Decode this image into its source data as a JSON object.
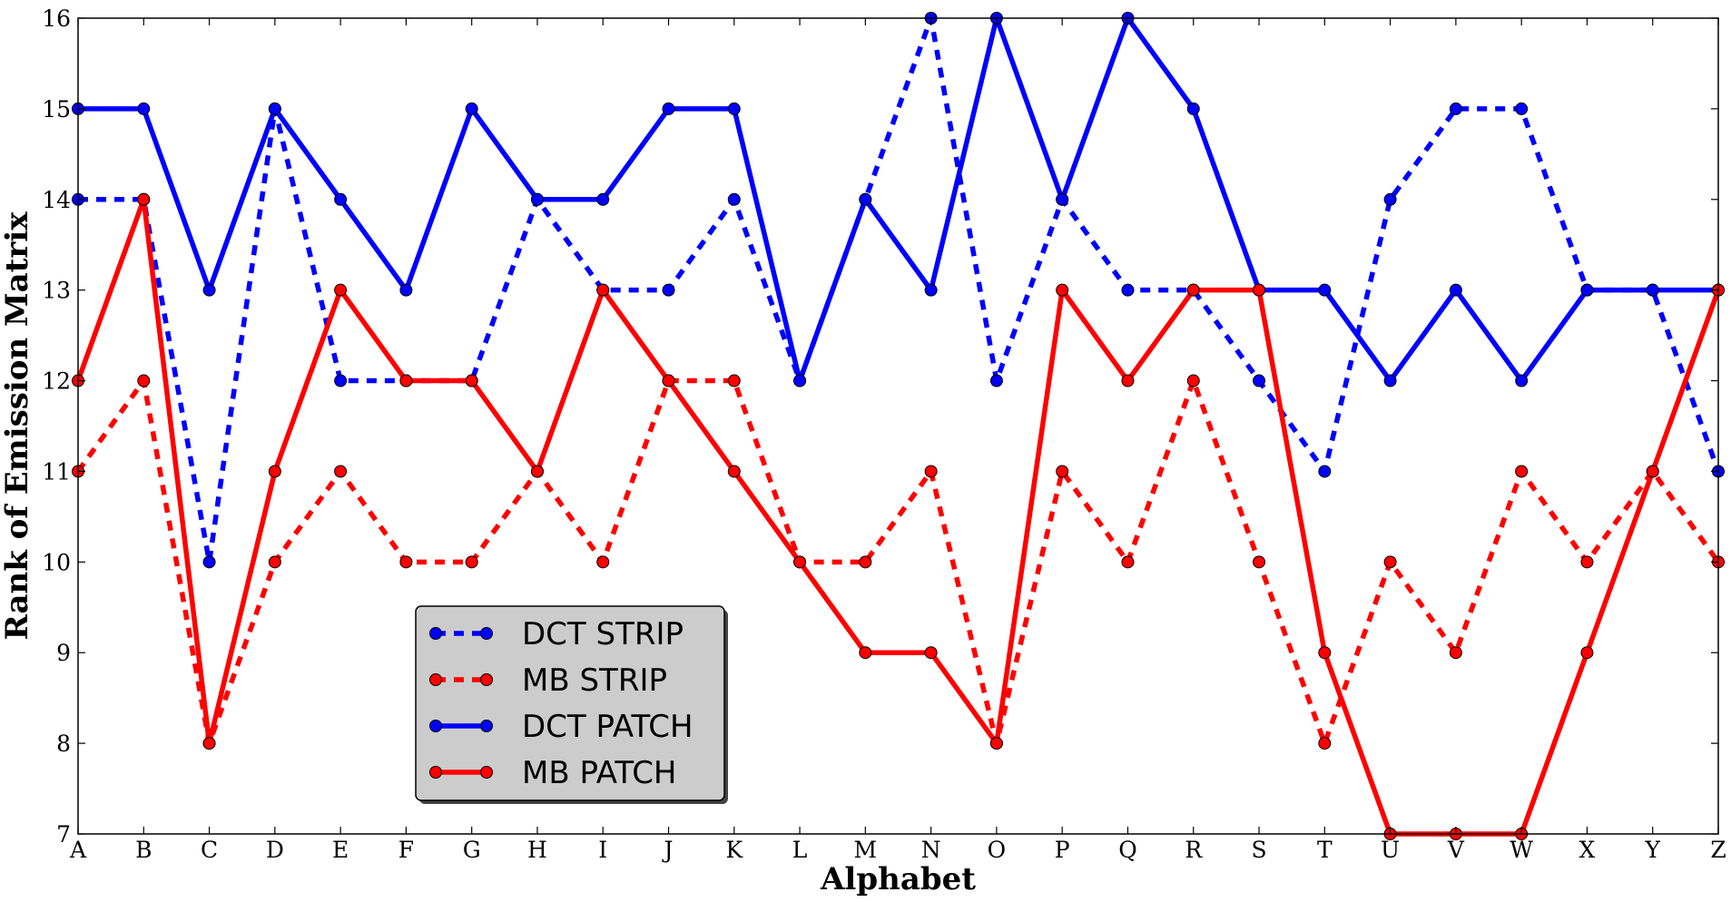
{
  "chart_data": {
    "type": "line",
    "title": "",
    "xlabel": "Alphabet",
    "ylabel": "Rank of Emission Matrix",
    "categories": [
      "A",
      "B",
      "C",
      "D",
      "E",
      "F",
      "G",
      "H",
      "I",
      "J",
      "K",
      "L",
      "M",
      "N",
      "O",
      "P",
      "Q",
      "R",
      "S",
      "T",
      "U",
      "V",
      "W",
      "X",
      "Y",
      "Z"
    ],
    "ylim": [
      7,
      16
    ],
    "yticks": [
      7,
      8,
      9,
      10,
      11,
      12,
      13,
      14,
      15,
      16
    ],
    "grid": false,
    "legend_position": "lower-center-left",
    "series": [
      {
        "name": "DCT STRIP",
        "color": "#0000ff",
        "style": "dashed",
        "marker": "circle",
        "values": [
          14,
          14,
          10,
          15,
          12,
          12,
          12,
          14,
          13,
          13,
          14,
          12,
          14,
          16,
          12,
          14,
          13,
          13,
          12,
          11,
          14,
          15,
          15,
          13,
          13,
          11
        ]
      },
      {
        "name": "MB STRIP",
        "color": "#ff0000",
        "style": "dashed",
        "marker": "circle",
        "values": [
          11,
          12,
          8,
          10,
          11,
          10,
          10,
          11,
          10,
          12,
          12,
          10,
          10,
          11,
          8,
          11,
          10,
          12,
          10,
          8,
          10,
          9,
          11,
          10,
          11,
          10
        ]
      },
      {
        "name": "DCT PATCH",
        "color": "#0000ff",
        "style": "solid",
        "marker": "circle",
        "values": [
          15,
          15,
          13,
          15,
          14,
          13,
          15,
          14,
          14,
          15,
          15,
          12,
          14,
          13,
          16,
          14,
          16,
          15,
          13,
          13,
          12,
          13,
          12,
          13,
          13,
          13
        ]
      },
      {
        "name": "MB PATCH",
        "color": "#ff0000",
        "style": "solid",
        "marker": "circle",
        "values": [
          12,
          14,
          8,
          11,
          13,
          12,
          12,
          11,
          13,
          12,
          11,
          10,
          9,
          9,
          8,
          13,
          12,
          13,
          13,
          9,
          7,
          7,
          7,
          9,
          11,
          13
        ]
      }
    ]
  }
}
